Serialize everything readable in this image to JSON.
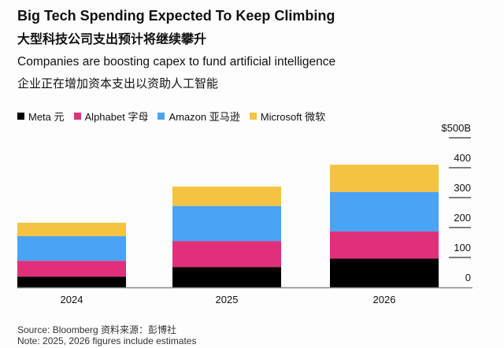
{
  "header": {
    "title": "Big Tech Spending Expected To Keep Climbing",
    "title_cn": "大型科技公司支出预计将继续攀升",
    "subtitle": "Companies are boosting capex to fund artificial intelligence",
    "subtitle_cn": "企业正在增加资本支出以资助人工智能"
  },
  "chart_data": {
    "type": "bar",
    "stacked": true,
    "categories": [
      "2024",
      "2025",
      "2026"
    ],
    "series": [
      {
        "name": "Meta 元",
        "color": "#000000",
        "values": [
          36,
          68,
          96
        ]
      },
      {
        "name": "Alphabet 字母",
        "color": "#e0307a",
        "values": [
          53,
          87,
          91
        ]
      },
      {
        "name": "Amazon 亚马逊",
        "color": "#4aa3f5",
        "values": [
          82,
          117,
          132
        ]
      },
      {
        "name": "Microsoft 微软",
        "color": "#f5c342",
        "values": [
          45,
          65,
          91
        ]
      }
    ],
    "ylim": [
      0,
      500
    ],
    "yticks": [
      "0",
      "100",
      "200",
      "300",
      "400",
      "$500B"
    ],
    "yaxis_position": "right",
    "legend_position": "top-left",
    "grid": false
  },
  "footer": {
    "source": "Source: Bloomberg 资料来源：彭博社",
    "note": "Note: 2025, 2026 figures include estimates"
  }
}
